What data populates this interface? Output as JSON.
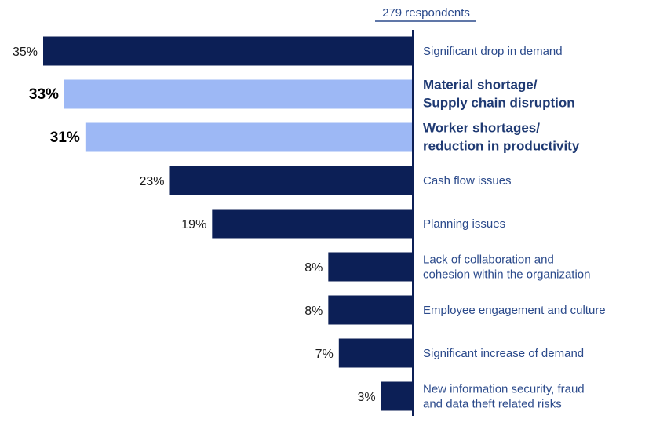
{
  "respondents_label": "279 respondents",
  "colors": {
    "dark_bar": "#0c1f56",
    "light_bar": "#9db8f5",
    "axis": "#0c1f56",
    "label_text": "#2b4a8b",
    "highlight_text": "#1f3a73"
  },
  "chart_data": {
    "type": "bar",
    "orientation": "horizontal",
    "direction": "bars extend leftward from axis",
    "categories": [
      [
        "Significant drop in demand"
      ],
      [
        "Material shortage/",
        "Supply chain disruption"
      ],
      [
        "Worker shortages/",
        "reduction in productivity"
      ],
      [
        "Cash flow issues"
      ],
      [
        "Planning issues"
      ],
      [
        "Lack of collaboration and",
        "cohesion within the organization"
      ],
      [
        "Employee engagement and culture"
      ],
      [
        "Significant increase of demand"
      ],
      [
        "New information security, fraud",
        "and data theft related risks"
      ]
    ],
    "values": [
      35,
      33,
      31,
      23,
      19,
      8,
      8,
      7,
      3
    ],
    "value_labels": [
      "35%",
      "33%",
      "31%",
      "23%",
      "19%",
      "8%",
      "8%",
      "7%",
      "3%"
    ],
    "highlighted": [
      false,
      true,
      true,
      false,
      false,
      false,
      false,
      false,
      false
    ],
    "xlim": [
      0,
      35
    ]
  }
}
